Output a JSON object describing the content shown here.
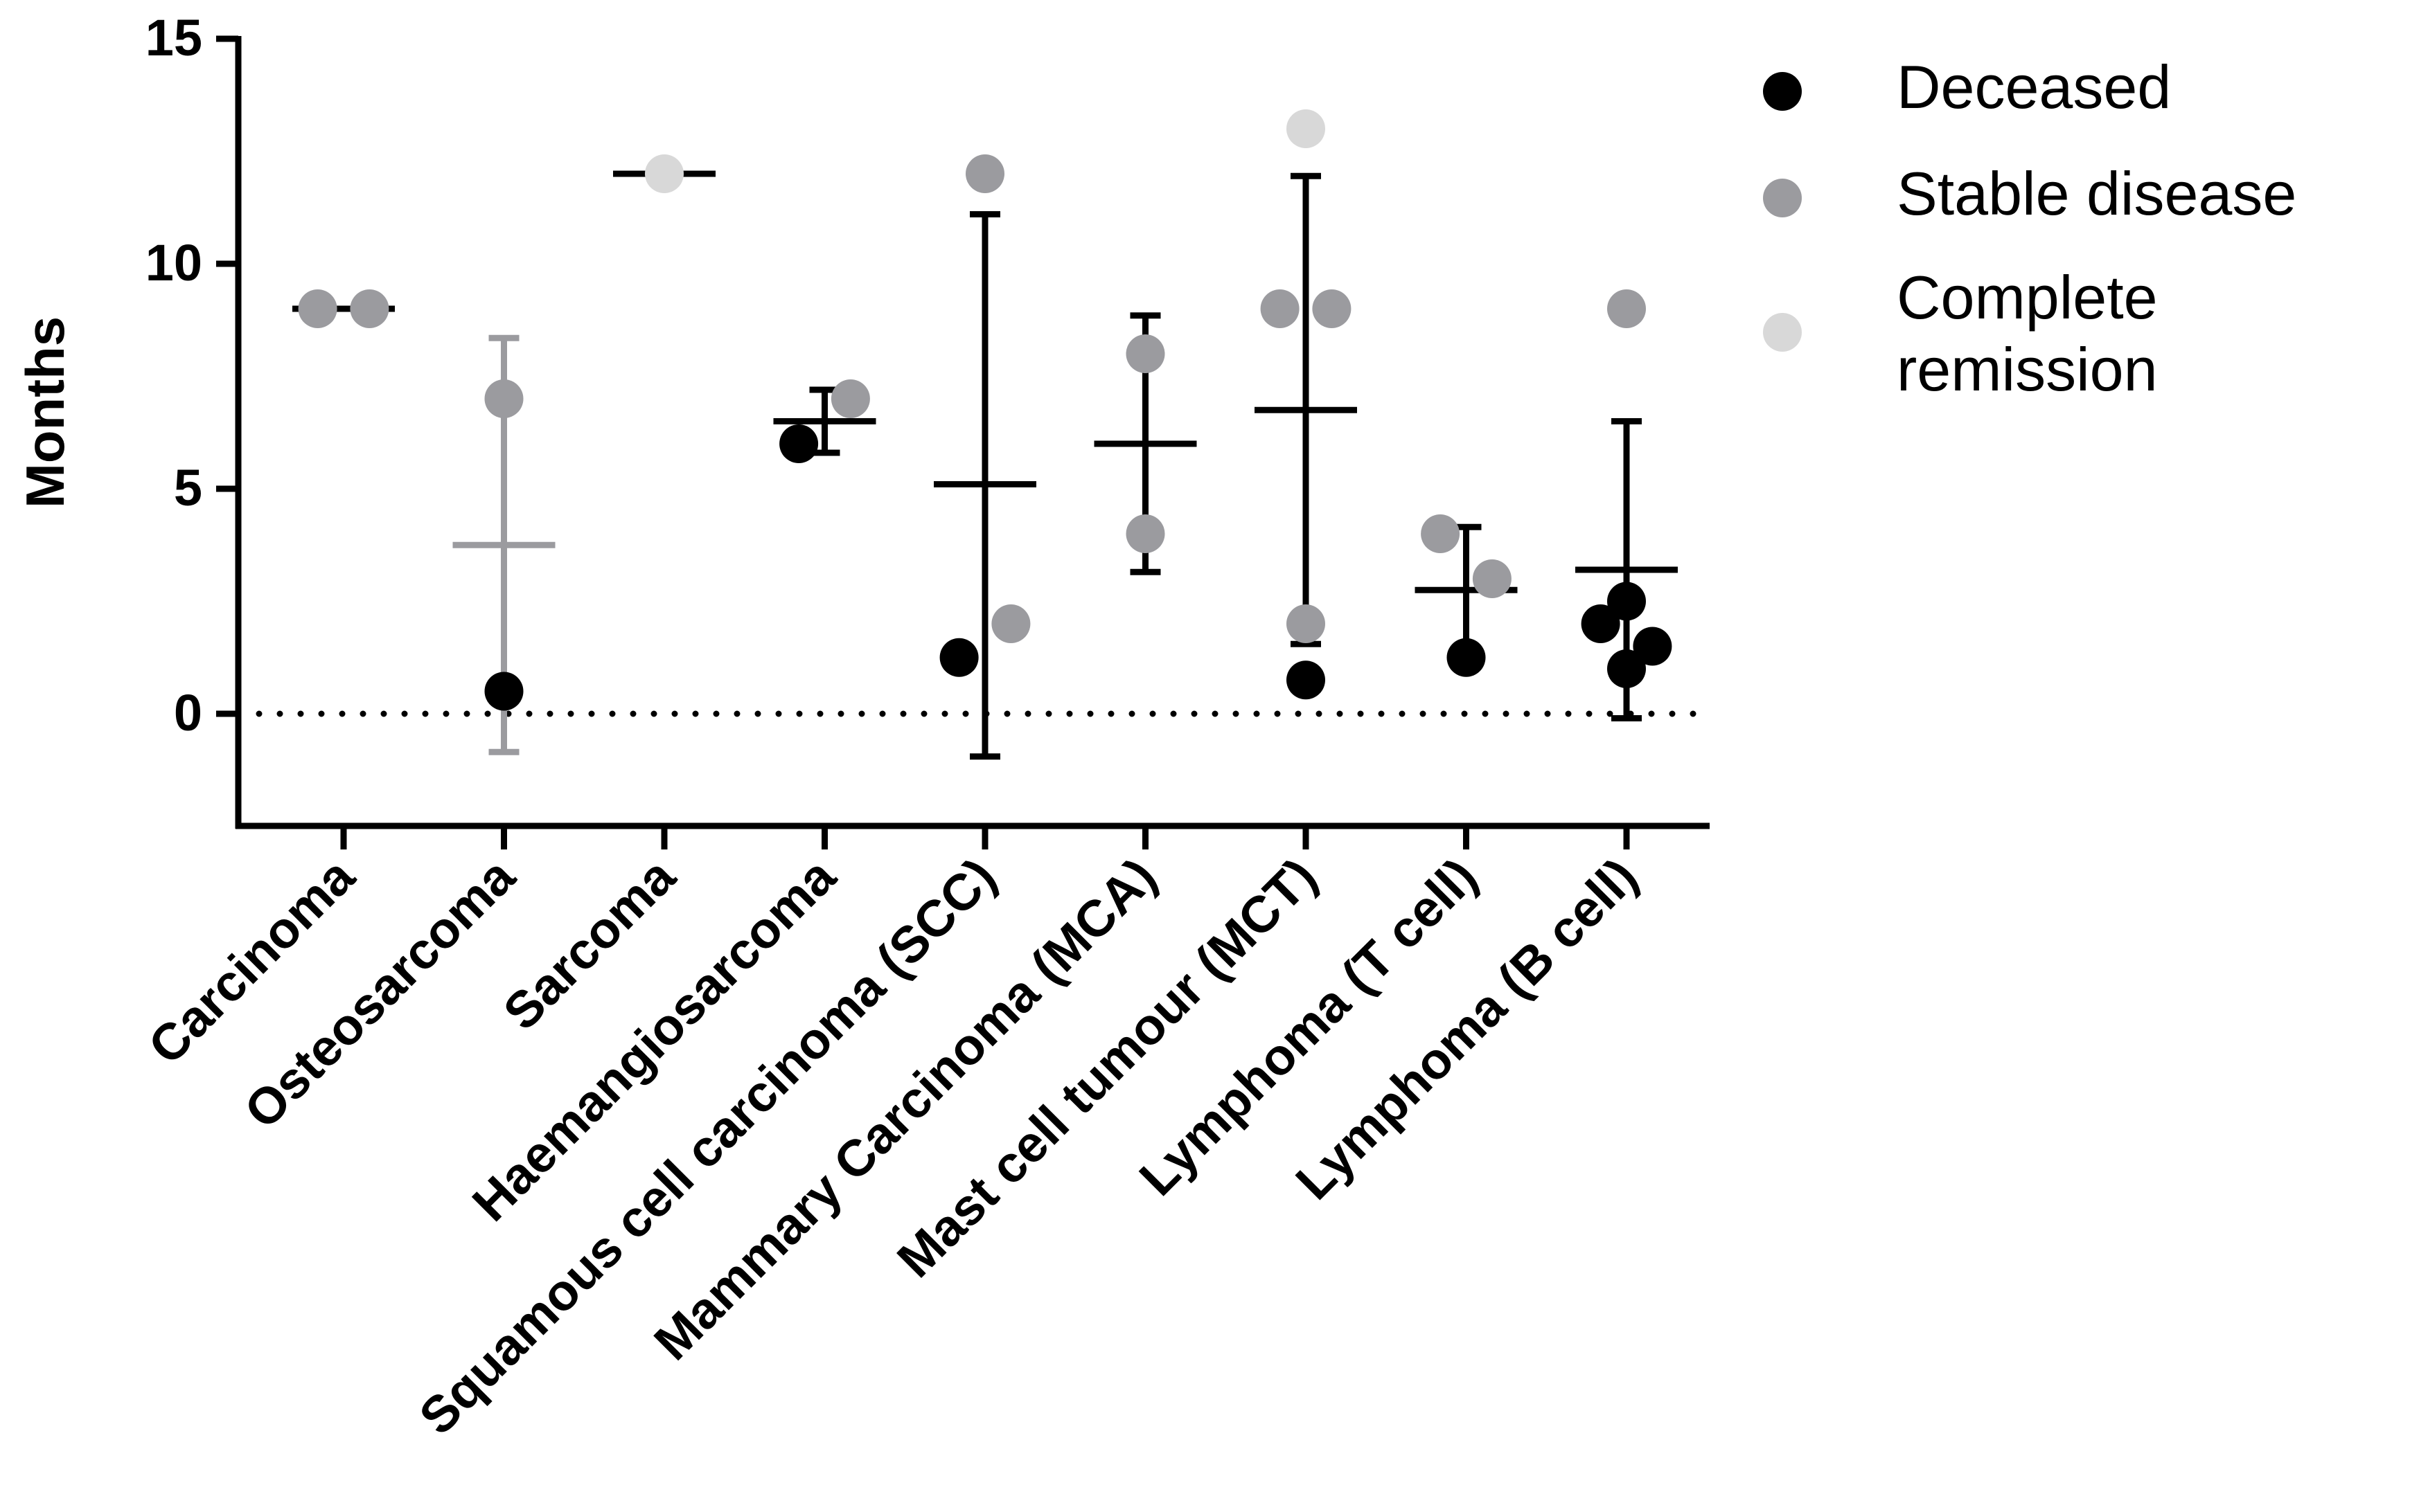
{
  "chart_data": {
    "type": "scatter",
    "ylabel": "Months",
    "ylim": [
      -2,
      15
    ],
    "yticks": [
      0,
      5,
      10,
      15
    ],
    "reference_line_y": 0,
    "categories": [
      "Carcinoma",
      "Osteosarcoma",
      "Sarcoma",
      "Haemangiosarcoma",
      "Squamous cell carcinoma (SCC)",
      "Mammary Carcinoma (MCA)",
      "Mast cell tumour (MCT)",
      "Lymphoma (T cell)",
      "Lymphoma (B cell)"
    ],
    "legend": [
      {
        "key": "deceased",
        "label": "Deceased",
        "color": "#000000"
      },
      {
        "key": "stable",
        "label": "Stable disease",
        "color": "#9b9b9f"
      },
      {
        "key": "complete",
        "label": "Complete remission",
        "color": "#d8d8d8"
      }
    ],
    "legend_position": "top-right",
    "summary": [
      {
        "category": "Carcinoma",
        "mean": 9.0,
        "lower": 9.0,
        "upper": 9.0,
        "color": "#000000"
      },
      {
        "category": "Osteosarcoma",
        "mean": 3.75,
        "lower": -0.85,
        "upper": 8.35,
        "color": "#9b9b9f"
      },
      {
        "category": "Sarcoma",
        "mean": 12.0,
        "lower": 12.0,
        "upper": 12.0,
        "color": "#000000"
      },
      {
        "category": "Haemangiosarcoma",
        "mean": 6.5,
        "lower": 5.8,
        "upper": 7.2,
        "color": "#000000"
      },
      {
        "category": "Squamous cell carcinoma (SCC)",
        "mean": 5.1,
        "lower": -0.95,
        "upper": 11.1,
        "color": "#000000"
      },
      {
        "category": "Mammary Carcinoma (MCA)",
        "mean": 6.0,
        "lower": 3.15,
        "upper": 8.85,
        "color": "#000000"
      },
      {
        "category": "Mast cell tumour (MCT)",
        "mean": 6.75,
        "lower": 1.55,
        "upper": 11.95,
        "color": "#000000"
      },
      {
        "category": "Lymphoma (T cell)",
        "mean": 2.75,
        "lower": 1.35,
        "upper": 4.15,
        "color": "#000000"
      },
      {
        "category": "Lymphoma (B cell)",
        "mean": 3.2,
        "lower": -0.1,
        "upper": 6.5,
        "color": "#000000"
      }
    ],
    "points": [
      {
        "category": "Carcinoma",
        "status": "stable",
        "y": 9,
        "offset": -0.17
      },
      {
        "category": "Carcinoma",
        "status": "stable",
        "y": 9,
        "offset": 0.17
      },
      {
        "category": "Osteosarcoma",
        "status": "stable",
        "y": 7,
        "offset": 0
      },
      {
        "category": "Osteosarcoma",
        "status": "deceased",
        "y": 0.5,
        "offset": 0
      },
      {
        "category": "Sarcoma",
        "status": "complete",
        "y": 12,
        "offset": 0
      },
      {
        "category": "Haemangiosarcoma",
        "status": "deceased",
        "y": 6,
        "offset": -0.17
      },
      {
        "category": "Haemangiosarcoma",
        "status": "stable",
        "y": 7,
        "offset": 0.17
      },
      {
        "category": "Squamous cell carcinoma (SCC)",
        "status": "stable",
        "y": 12,
        "offset": 0
      },
      {
        "category": "Squamous cell carcinoma (SCC)",
        "status": "deceased",
        "y": 1.25,
        "offset": -0.17
      },
      {
        "category": "Squamous cell carcinoma (SCC)",
        "status": "stable",
        "y": 2,
        "offset": 0.17
      },
      {
        "category": "Mammary Carcinoma (MCA)",
        "status": "stable",
        "y": 8,
        "offset": 0
      },
      {
        "category": "Mammary Carcinoma (MCA)",
        "status": "stable",
        "y": 4,
        "offset": 0
      },
      {
        "category": "Mast cell tumour (MCT)",
        "status": "complete",
        "y": 13,
        "offset": 0
      },
      {
        "category": "Mast cell tumour (MCT)",
        "status": "stable",
        "y": 9,
        "offset": -0.17
      },
      {
        "category": "Mast cell tumour (MCT)",
        "status": "stable",
        "y": 9,
        "offset": 0.17
      },
      {
        "category": "Mast cell tumour (MCT)",
        "status": "stable",
        "y": 2,
        "offset": 0
      },
      {
        "category": "Mast cell tumour (MCT)",
        "status": "deceased",
        "y": 0.75,
        "offset": 0
      },
      {
        "category": "Lymphoma (T cell)",
        "status": "stable",
        "y": 4,
        "offset": -0.17
      },
      {
        "category": "Lymphoma (T cell)",
        "status": "stable",
        "y": 3,
        "offset": 0.17
      },
      {
        "category": "Lymphoma (T cell)",
        "status": "deceased",
        "y": 1.25,
        "offset": 0
      },
      {
        "category": "Lymphoma (B cell)",
        "status": "stable",
        "y": 9,
        "offset": 0
      },
      {
        "category": "Lymphoma (B cell)",
        "status": "deceased",
        "y": 2.5,
        "offset": 0
      },
      {
        "category": "Lymphoma (B cell)",
        "status": "deceased",
        "y": 2,
        "offset": -0.17
      },
      {
        "category": "Lymphoma (B cell)",
        "status": "deceased",
        "y": 1.5,
        "offset": 0.17
      },
      {
        "category": "Lymphoma (B cell)",
        "status": "deceased",
        "y": 1,
        "offset": 0
      }
    ]
  }
}
